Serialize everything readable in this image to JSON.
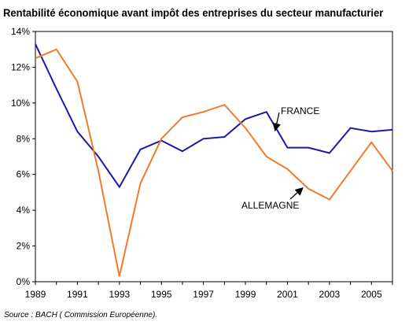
{
  "title": "Rentabilité économique avant impôt des entreprises du secteur manufacturier",
  "source": "Source : BACH ( Commission Européenne).",
  "chart_data": {
    "type": "line",
    "title": "Rentabilité économique avant impôt des entreprises du secteur manufacturier",
    "x": [
      1989,
      1990,
      1991,
      1992,
      1993,
      1994,
      1995,
      1996,
      1997,
      1998,
      1999,
      2000,
      2001,
      2002,
      2003,
      2004,
      2005,
      2006
    ],
    "x_tick_labels": [
      "1989",
      "1991",
      "1993",
      "1995",
      "1997",
      "1999",
      "2001",
      "2003",
      "2005"
    ],
    "y_tick_labels": [
      "0%",
      "2%",
      "4%",
      "6%",
      "8%",
      "10%",
      "12%",
      "14%"
    ],
    "ylim": [
      0,
      14
    ],
    "xlim": [
      1989,
      2006
    ],
    "grid": false,
    "series": [
      {
        "name": "FRANCE",
        "color": "#1a1aa6",
        "values": [
          13.3,
          10.8,
          8.4,
          7.0,
          5.3,
          7.4,
          7.9,
          7.3,
          8.0,
          8.1,
          9.1,
          9.5,
          7.5,
          7.5,
          7.2,
          8.6,
          8.4,
          8.5
        ]
      },
      {
        "name": "ALLEMAGNE",
        "color": "#f07a2a",
        "values": [
          12.5,
          13.0,
          11.2,
          6.2,
          0.3,
          5.5,
          8.0,
          9.2,
          9.5,
          9.9,
          8.6,
          7.0,
          6.3,
          5.2,
          4.6,
          6.2,
          7.8,
          6.2
        ]
      }
    ],
    "annotations": [
      {
        "text": "FRANCE",
        "series": "FRANCE",
        "arrow_to_x": 2000.3
      },
      {
        "text": "ALLEMAGNE",
        "series": "ALLEMAGNE",
        "arrow_to_x": 2001.8
      }
    ]
  }
}
